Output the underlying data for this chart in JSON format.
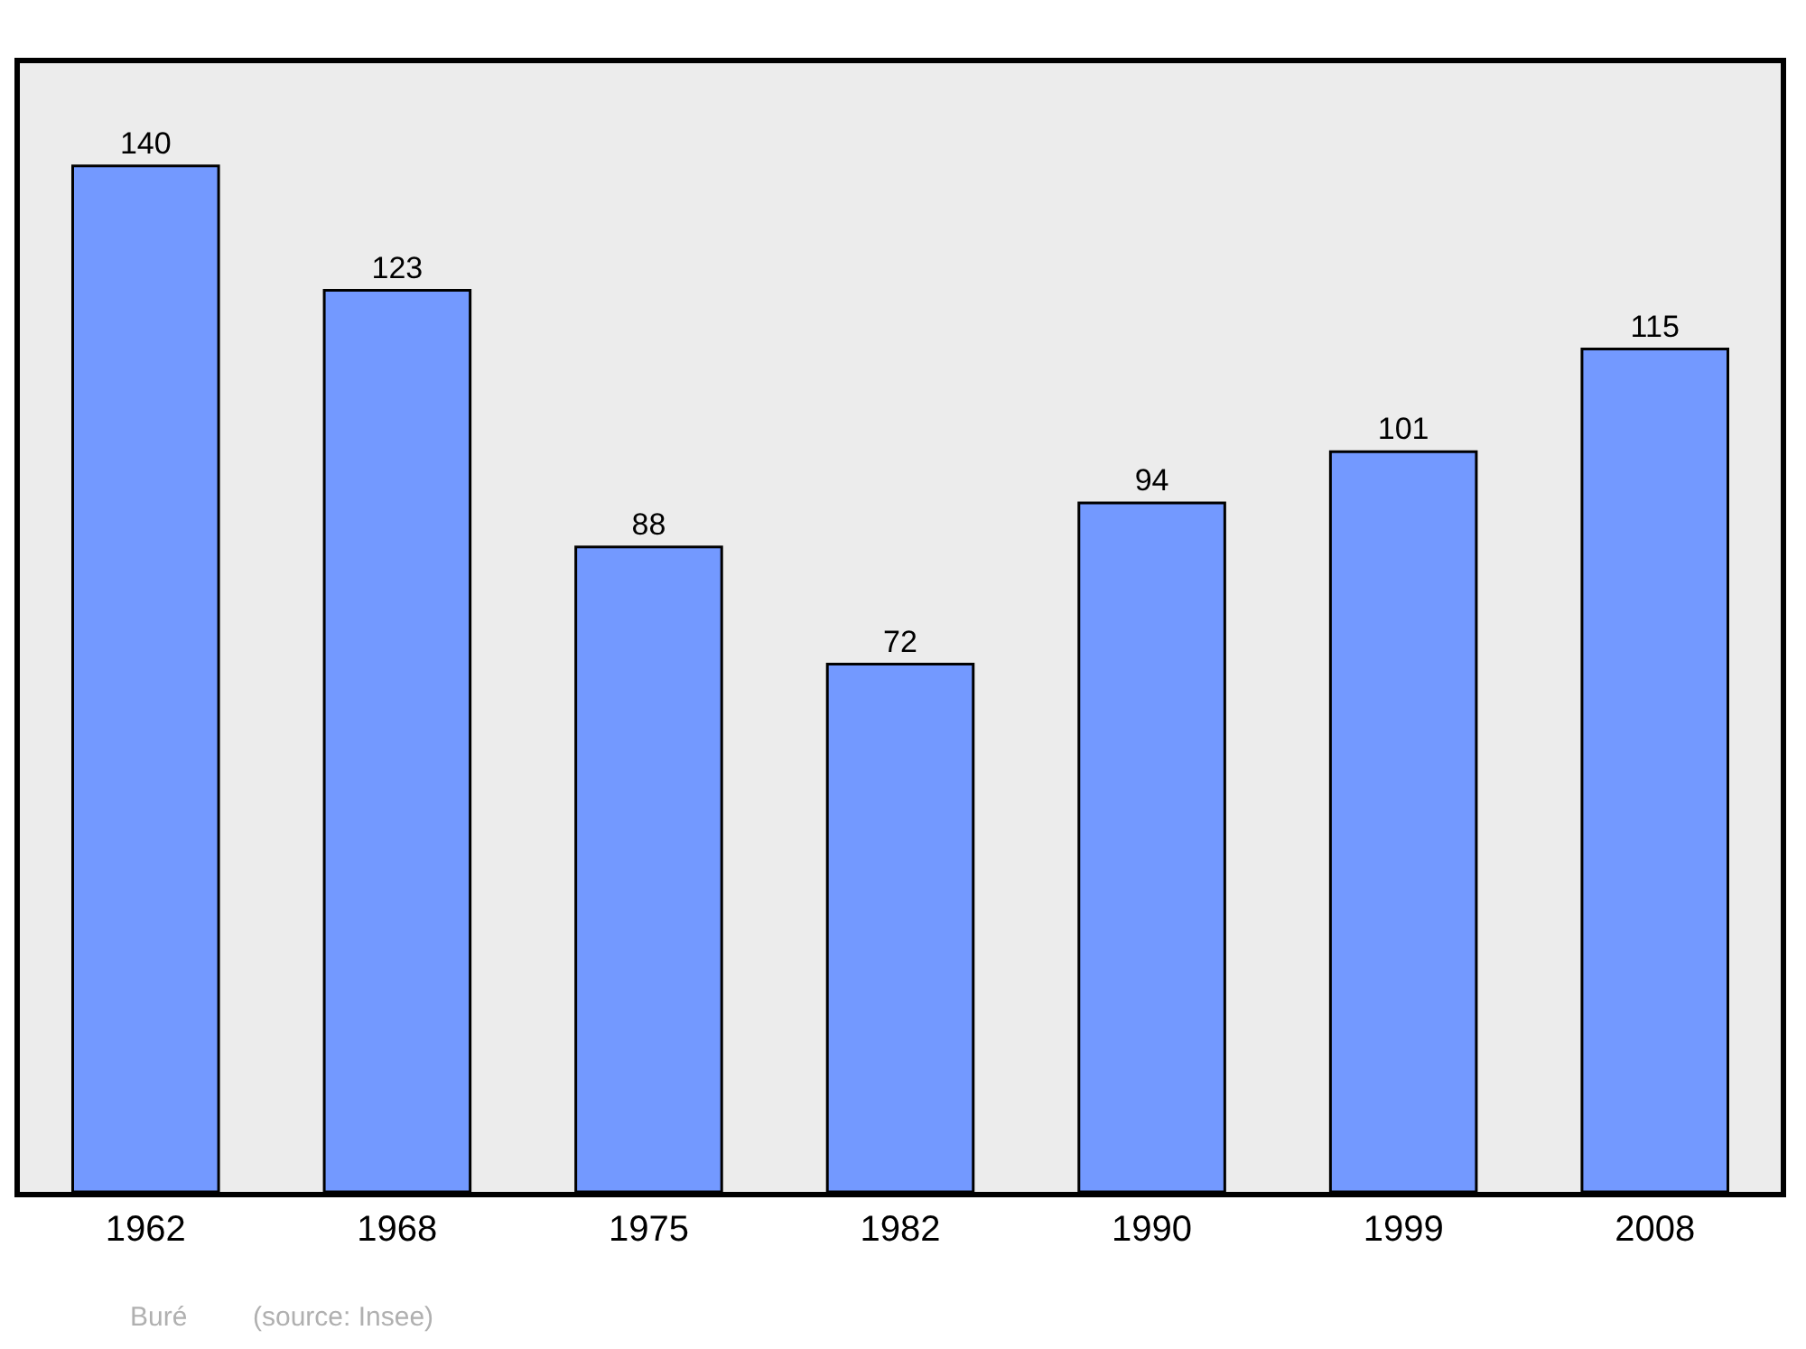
{
  "chart_data": {
    "type": "bar",
    "categories": [
      "1962",
      "1968",
      "1975",
      "1982",
      "1990",
      "1999",
      "2008"
    ],
    "values": [
      140,
      123,
      88,
      72,
      94,
      101,
      115
    ],
    "color": "#7399ff",
    "data_labels": true,
    "ylim": [
      0,
      154
    ],
    "tick_labels": "x",
    "grid": false,
    "legend": false,
    "annotations": [
      "Buré",
      "(source: Insee)"
    ]
  }
}
